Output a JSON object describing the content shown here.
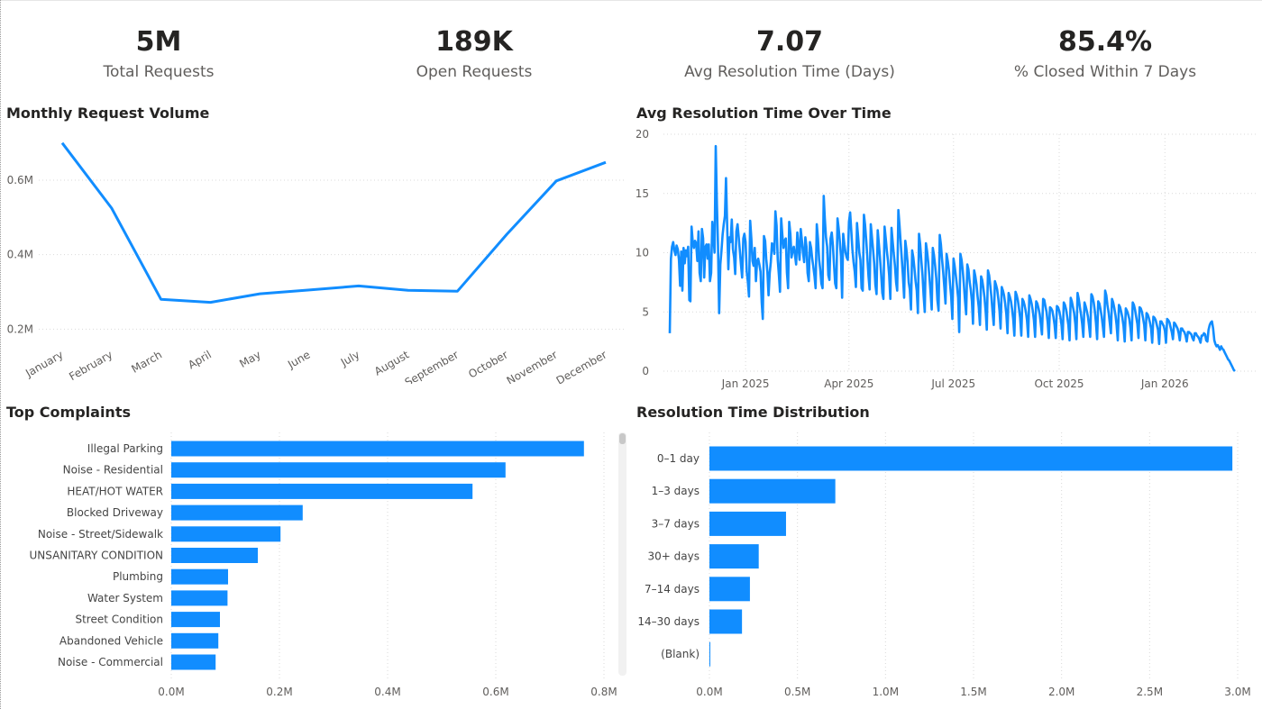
{
  "kpis": [
    {
      "value": "5M",
      "label": "Total Requests"
    },
    {
      "value": "189K",
      "label": "Open Requests"
    },
    {
      "value": "7.07",
      "label": "Avg Resolution Time (Days)"
    },
    {
      "value": "85.4%",
      "label": "% Closed Within 7 Days"
    }
  ],
  "colors": {
    "series": "#118DFF",
    "grid": "#d9d9d9",
    "axis_text": "#605e5c"
  },
  "chart_data": [
    {
      "id": "monthly",
      "type": "line",
      "title": "Monthly Request Volume",
      "categories": [
        "January",
        "February",
        "March",
        "April",
        "May",
        "June",
        "July",
        "August",
        "September",
        "October",
        "November",
        "December"
      ],
      "values": [
        0.7,
        0.525,
        0.28,
        0.272,
        0.295,
        0.305,
        0.316,
        0.304,
        0.302,
        0.455,
        0.598,
        0.648
      ],
      "value_unit": "M",
      "ylim": [
        0.15,
        0.75
      ],
      "yticks": [
        0.2,
        0.4,
        0.6
      ],
      "ytick_labels": [
        "0.2M",
        "0.4M",
        "0.6M"
      ],
      "xlabel": "",
      "ylabel": "",
      "grid": true
    },
    {
      "id": "resolution_trend",
      "type": "line",
      "title": "Avg Resolution Time Over Time",
      "x_start": "2024-10-27",
      "x_end": "2026-03-03",
      "series_daily_avg": [
        3.2,
        9.5,
        10.5,
        10.9,
        10.2,
        9.8,
        10.6,
        10.3,
        9.4,
        7.2,
        10.1,
        6.8,
        10.4,
        9.1,
        10.2,
        9.7,
        10.5,
        6.0,
        5.9,
        12.2,
        10.9,
        10.4,
        11.0,
        10.8,
        9.3,
        11.8,
        8.3,
        7.6,
        12.0,
        11.2,
        7.9,
        10.5,
        10.7,
        9.5,
        10.7,
        7.6,
        8.3,
        12.6,
        11.5,
        10.0,
        19.0,
        14.1,
        10.6,
        4.9,
        9.0,
        10.1,
        11.5,
        12.4,
        13.1,
        16.3,
        12.2,
        8.6,
        11.3,
        10.9,
        12.8,
        10.3,
        9.6,
        8.2,
        11.8,
        12.4,
        11.3,
        10.2,
        9.0,
        7.9,
        11.2,
        11.6,
        10.9,
        8.4,
        7.5,
        6.3,
        12.7,
        11.2,
        9.3,
        8.9,
        10.4,
        7.6,
        9.3,
        9.5,
        9.0,
        8.4,
        5.8,
        4.4,
        11.4,
        11.0,
        9.5,
        8.4,
        6.4,
        8.3,
        9.2,
        10.8,
        10.6,
        9.9,
        13.5,
        12.3,
        9.4,
        8.1,
        6.7,
        12.9,
        11.5,
        10.4,
        11.0,
        11.2,
        8.3,
        7.0,
        12.6,
        11.6,
        9.6,
        10.2,
        10.5,
        9.8,
        9.0,
        11.7,
        10.5,
        9.4,
        12.0,
        11.0,
        10.0,
        9.2,
        11.3,
        10.5,
        8.3,
        7.6,
        10.9,
        10.4,
        9.5,
        8.8,
        8.0,
        7.0,
        12.4,
        11.2,
        9.4,
        8.6,
        7.4,
        7.0,
        14.8,
        12.9,
        11.3,
        10.5,
        8.1,
        7.7,
        11.2,
        11.7,
        10.6,
        9.0,
        7.4,
        7.0,
        12.9,
        12.1,
        11.0,
        9.7,
        6.2,
        11.6,
        10.7,
        10.0,
        9.6,
        9.4,
        12.6,
        13.4,
        11.8,
        10.3,
        9.2,
        8.4,
        7.1,
        12.5,
        11.3,
        10.0,
        9.4,
        7.0,
        6.8,
        13.2,
        12.4,
        11.1,
        9.6,
        8.0,
        6.9,
        12.4,
        11.3,
        10.2,
        9.1,
        7.3,
        6.5,
        11.9,
        10.8,
        9.6,
        8.2,
        6.6,
        6.1,
        12.2,
        11.2,
        10.1,
        9.3,
        8.1,
        6.1,
        12.1,
        11.0,
        9.9,
        8.9,
        7.5,
        6.8,
        13.6,
        12.3,
        10.8,
        9.5,
        8.0,
        6.2,
        11.0,
        10.3,
        9.2,
        7.5,
        6.9,
        5.2,
        10.2,
        9.6,
        8.7,
        7.6,
        6.8,
        4.9,
        11.6,
        10.7,
        9.3,
        8.1,
        6.4,
        5.0,
        10.8,
        10.1,
        9.2,
        8.0,
        6.7,
        5.2,
        10.4,
        9.8,
        8.9,
        7.8,
        6.0,
        5.1,
        11.5,
        10.7,
        9.5,
        8.4,
        7.1,
        5.7,
        9.9,
        9.3,
        8.5,
        7.3,
        6.3,
        4.4,
        9.5,
        8.9,
        8.1,
        7.2,
        6.2,
        3.3,
        9.9,
        9.4,
        8.5,
        7.4,
        6.0,
        4.8,
        9.0,
        8.6,
        7.6,
        6.9,
        5.9,
        4.0,
        8.5,
        8.0,
        7.3,
        6.3,
        5.4,
        3.9,
        8.0,
        7.7,
        7.0,
        6.2,
        5.0,
        3.5,
        8.5,
        8.1,
        7.2,
        6.3,
        5.0,
        3.9,
        7.6,
        7.3,
        6.9,
        6.1,
        5.1,
        3.6,
        7.1,
        6.8,
        6.4,
        5.7,
        4.8,
        3.2,
        6.6,
        6.3,
        5.9,
        5.2,
        4.4,
        3.0,
        6.7,
        6.4,
        6.0,
        5.3,
        4.5,
        3.0,
        6.1,
        5.9,
        5.5,
        5.0,
        4.3,
        2.9,
        6.4,
        6.1,
        5.7,
        5.1,
        4.3,
        2.9,
        5.9,
        5.7,
        5.3,
        4.8,
        4.0,
        3.1,
        6.1,
        6.0,
        5.5,
        5.0,
        4.1,
        2.8,
        5.4,
        5.3,
        5.1,
        4.6,
        3.9,
        2.8,
        5.5,
        5.4,
        5.1,
        4.6,
        3.9,
        2.7,
        5.8,
        5.6,
        5.2,
        4.6,
        3.9,
        2.6,
        6.2,
        5.9,
        5.4,
        4.9,
        4.0,
        2.7,
        6.6,
        6.1,
        5.4,
        4.8,
        4.0,
        2.9,
        5.8,
        5.5,
        5.1,
        4.6,
        3.8,
        2.9,
        6.5,
        6.3,
        5.8,
        5.1,
        4.1,
        2.7,
        5.9,
        5.7,
        5.2,
        4.6,
        3.8,
        2.9,
        6.8,
        6.4,
        5.6,
        5.0,
        4.1,
        3.2,
        6.1,
        5.8,
        5.3,
        4.7,
        3.9,
        2.6,
        5.6,
        5.4,
        5.0,
        4.5,
        3.8,
        2.5,
        5.3,
        5.1,
        4.8,
        4.4,
        3.7,
        2.6,
        5.8,
        5.6,
        5.2,
        4.6,
        4.0,
        2.8,
        5.4,
        5.3,
        5.0,
        4.5,
        3.9,
        2.6,
        4.9,
        4.8,
        4.5,
        4.1,
        3.6,
        2.4,
        4.6,
        4.5,
        4.3,
        3.9,
        3.5,
        2.3,
        4.2,
        4.2,
        4.0,
        3.8,
        3.4,
        2.4,
        4.4,
        4.3,
        4.1,
        3.7,
        3.3,
        2.7,
        4.1,
        4.0,
        3.8,
        3.6,
        3.2,
        2.6,
        3.6,
        3.6,
        3.4,
        3.3,
        3.0,
        2.5,
        3.3,
        3.3,
        3.2,
        3.1,
        2.8,
        2.6,
        3.2,
        3.2,
        3.0,
        2.9,
        2.7,
        2.4,
        3.0,
        3.0,
        3.2,
        3.1,
        2.6,
        2.5,
        3.5,
        3.9,
        4.1,
        4.2,
        3.6,
        2.6,
        2.3,
        2.1,
        2.2,
        2.0,
        1.8,
        2.1,
        1.9,
        1.8,
        1.6,
        1.4,
        1.2,
        1.0,
        0.9,
        0.7,
        0.5,
        0.3,
        0.1,
        0.0
      ],
      "xticks": [
        "2025-01-01",
        "2025-04-01",
        "2025-07-01",
        "2025-10-01",
        "2026-01-01"
      ],
      "xtick_labels": [
        "Jan 2025",
        "Apr 2025",
        "Jul 2025",
        "Oct 2025",
        "Jan 2026"
      ],
      "ylim": [
        0,
        20
      ],
      "yticks": [
        0,
        5,
        10,
        15,
        20
      ],
      "ytick_labels": [
        "0",
        "5",
        "10",
        "15",
        "20"
      ],
      "xlabel": "",
      "ylabel": "",
      "grid": true
    },
    {
      "id": "top_complaints",
      "type": "bar",
      "orientation": "horizontal",
      "title": "Top Complaints",
      "categories": [
        "Illegal Parking",
        "Noise - Residential",
        "HEAT/HOT WATER",
        "Blocked Driveway",
        "Noise - Street/Sidewalk",
        "UNSANITARY CONDITION",
        "Plumbing",
        "Water System",
        "Street Condition",
        "Abandoned Vehicle",
        "Noise - Commercial"
      ],
      "values": [
        0.763,
        0.618,
        0.557,
        0.243,
        0.202,
        0.16,
        0.105,
        0.104,
        0.09,
        0.087,
        0.082
      ],
      "value_unit": "M",
      "xlim": [
        0,
        0.8
      ],
      "xticks": [
        0,
        0.2,
        0.4,
        0.6,
        0.8
      ],
      "xtick_labels": [
        "0.0M",
        "0.2M",
        "0.4M",
        "0.6M",
        "0.8M"
      ],
      "xlabel": "",
      "ylabel": "",
      "grid": true
    },
    {
      "id": "resolution_distribution",
      "type": "bar",
      "orientation": "horizontal",
      "title": "Resolution Time Distribution",
      "categories": [
        "0–1 day",
        "1–3 days",
        "3–7 days",
        "30+ days",
        "7–14 days",
        "14–30 days",
        "(Blank)"
      ],
      "values": [
        2.97,
        0.715,
        0.435,
        0.28,
        0.23,
        0.185,
        0.005
      ],
      "value_unit": "M",
      "xlim": [
        0,
        3.0
      ],
      "xticks": [
        0,
        0.5,
        1.0,
        1.5,
        2.0,
        2.5,
        3.0
      ],
      "xtick_labels": [
        "0.0M",
        "0.5M",
        "1.0M",
        "1.5M",
        "2.0M",
        "2.5M",
        "3.0M"
      ],
      "xlabel": "",
      "ylabel": "",
      "grid": true
    }
  ]
}
